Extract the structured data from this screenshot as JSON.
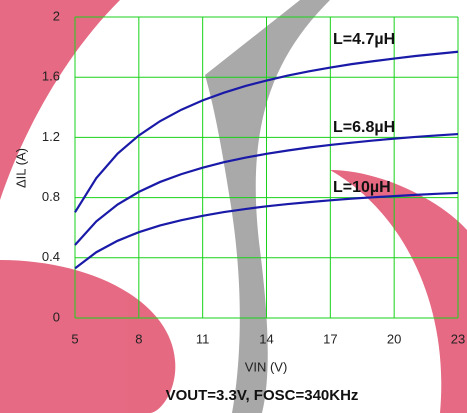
{
  "chart_data": {
    "type": "line",
    "x_label": "VIN (V)",
    "y_label": "ΔIL (A)",
    "caption": "VOUT=3.3V, FOSC=340KHz",
    "x": [
      5,
      6,
      7,
      8,
      9,
      10,
      11,
      12,
      13,
      14,
      15,
      16,
      17,
      18,
      19,
      20,
      21,
      22,
      23
    ],
    "series": [
      {
        "name": "L=4.7µH",
        "color": "#1a1aa8",
        "values": [
          0.702,
          0.929,
          1.092,
          1.213,
          1.308,
          1.384,
          1.446,
          1.497,
          1.541,
          1.578,
          1.611,
          1.639,
          1.664,
          1.687,
          1.706,
          1.724,
          1.741,
          1.755,
          1.769
        ]
      },
      {
        "name": "L=6.8µH",
        "color": "#1a1aa8",
        "values": [
          0.485,
          0.642,
          0.754,
          0.838,
          0.904,
          0.956,
          0.999,
          1.035,
          1.065,
          1.091,
          1.113,
          1.133,
          1.15,
          1.165,
          1.179,
          1.192,
          1.203,
          1.213,
          1.222
        ]
      },
      {
        "name": "L=10µH",
        "color": "#1a1aa8",
        "values": [
          0.33,
          0.437,
          0.513,
          0.57,
          0.615,
          0.65,
          0.679,
          0.704,
          0.724,
          0.742,
          0.757,
          0.77,
          0.782,
          0.793,
          0.802,
          0.81,
          0.818,
          0.825,
          0.831
        ]
      }
    ],
    "xlim": [
      5,
      23
    ],
    "ylim": [
      0,
      2
    ],
    "xticks": [
      5,
      8,
      11,
      14,
      17,
      20,
      23
    ],
    "yticks": [
      0,
      0.4,
      0.8,
      1.2,
      1.6,
      2
    ],
    "grid": true,
    "grid_color": "#19d219"
  }
}
